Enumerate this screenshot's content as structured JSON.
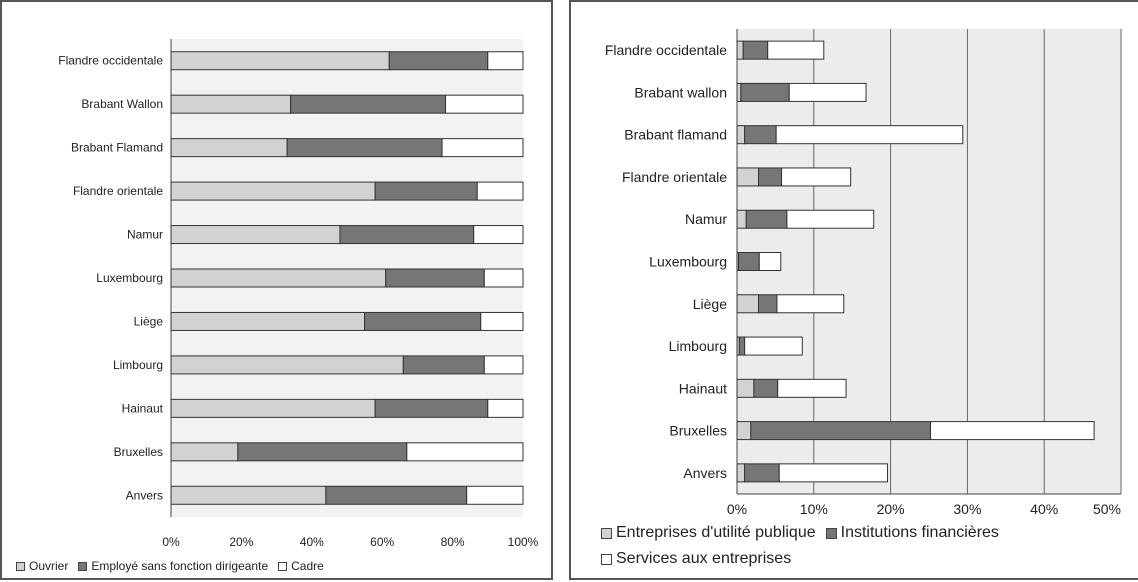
{
  "colors": {
    "ouvrier": "#d2d2d2",
    "employe": "#767676",
    "cadre": "#ffffff",
    "utilite": "#d2d2d2",
    "financieres": "#767676",
    "services": "#ffffff"
  },
  "chart_data": [
    {
      "type": "bar",
      "orientation": "horizontal",
      "stacked": "percent",
      "categories": [
        "Flandre occidentale",
        "Brabant Wallon",
        "Brabant Flamand",
        "Flandre orientale",
        "Namur",
        "Luxembourg",
        "Liège",
        "Limbourg",
        "Hainaut",
        "Bruxelles",
        "Anvers"
      ],
      "series": [
        {
          "name": "Ouvrier",
          "color_key": "ouvrier",
          "values": [
            62,
            34,
            33,
            58,
            48,
            61,
            55,
            66,
            58,
            19,
            44
          ]
        },
        {
          "name": "Employé sans fonction dirigeante",
          "color_key": "employe",
          "values": [
            28,
            44,
            44,
            29,
            38,
            28,
            33,
            23,
            32,
            48,
            40
          ]
        },
        {
          "name": "Cadre",
          "color_key": "cadre",
          "values": [
            10,
            22,
            23,
            13,
            14,
            11,
            12,
            11,
            10,
            33,
            16
          ]
        }
      ],
      "xlim": [
        0,
        100
      ],
      "xticks": [
        "0%",
        "20%",
        "40%",
        "60%",
        "80%",
        "100%"
      ],
      "grid": false,
      "legend": "bottom",
      "title": "",
      "xlabel": "",
      "ylabel": ""
    },
    {
      "type": "bar",
      "orientation": "horizontal",
      "stacked": "values",
      "categories": [
        "Flandre occidentale",
        "Brabant wallon",
        "Brabant flamand",
        "Flandre orientale",
        "Namur",
        "Luxembourg",
        "Liège",
        "Limbourg",
        "Hainaut",
        "Bruxelles",
        "Anvers"
      ],
      "series": [
        {
          "name": "Entreprises d'utilité publique",
          "color_key": "utilite",
          "values": [
            0.8,
            0.5,
            1.0,
            2.8,
            1.2,
            0.2,
            2.8,
            0.3,
            2.2,
            1.8,
            1.0
          ]
        },
        {
          "name": "Institutions financières",
          "color_key": "financieres",
          "values": [
            3.2,
            6.3,
            4.1,
            3.0,
            5.3,
            2.7,
            2.4,
            0.7,
            3.1,
            23.4,
            4.5
          ]
        },
        {
          "name": "Services aux entreprises",
          "color_key": "services",
          "values": [
            7.3,
            10.0,
            24.3,
            9.0,
            11.3,
            2.8,
            8.7,
            7.5,
            8.9,
            21.3,
            14.1
          ]
        }
      ],
      "xlim": [
        0,
        50
      ],
      "xticks": [
        "0%",
        "10%",
        "20%",
        "30%",
        "40%",
        "50%"
      ],
      "grid": true,
      "legend": "bottom",
      "title": "",
      "xlabel": "",
      "ylabel": ""
    }
  ]
}
